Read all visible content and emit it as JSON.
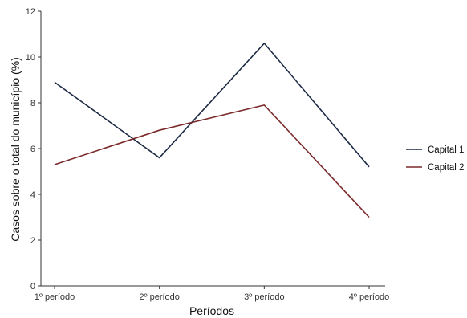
{
  "chart_data": {
    "type": "line",
    "categories": [
      "1º período",
      "2º período",
      "3º período",
      "4º período"
    ],
    "series": [
      {
        "name": "Capital 1",
        "values": [
          8.9,
          5.6,
          10.6,
          5.2
        ],
        "color": "#1c2a44"
      },
      {
        "name": "Capital 2",
        "values": [
          5.3,
          6.8,
          7.9,
          3.0
        ],
        "color": "#7a2a2a"
      }
    ],
    "xlabel": "Períodos",
    "ylabel": "Casos sobre o total  do município (%)",
    "ylim": [
      0,
      12
    ],
    "yticks": [
      "0",
      "2",
      "4",
      "6",
      "8",
      "10",
      "12"
    ],
    "grid": false,
    "legend_position": "right"
  }
}
